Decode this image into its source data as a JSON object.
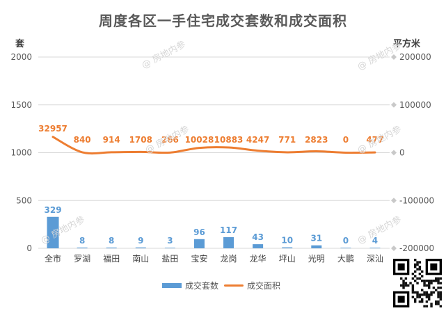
{
  "chart_data": {
    "type": "bar",
    "title": "周度各区一手住宅成交套数和成交面积",
    "left_axis_unit": "套",
    "right_axis_unit": "平方米",
    "categories": [
      "全市",
      "罗湖",
      "福田",
      "南山",
      "盐田",
      "宝安",
      "龙岗",
      "龙华",
      "坪山",
      "光明",
      "大鹏",
      "深汕"
    ],
    "series": [
      {
        "name": "成交套数",
        "type": "bar",
        "axis": "left",
        "color": "#5b9bd5",
        "values": [
          329,
          8,
          8,
          9,
          3,
          96,
          117,
          43,
          10,
          31,
          0,
          4
        ]
      },
      {
        "name": "成交面积",
        "type": "line",
        "axis": "right",
        "color": "#ed7d31",
        "values": [
          32957,
          840,
          914,
          1708,
          266,
          10028,
          10883,
          4247,
          771,
          2823,
          0,
          477
        ]
      }
    ],
    "left_ylim": [
      0,
      2000
    ],
    "left_ticks": [
      "0",
      "500",
      "1000",
      "1500",
      "2000"
    ],
    "right_ylim": [
      -200000,
      200000
    ],
    "right_ticks": [
      "-200000",
      "-100000",
      "0",
      "100000",
      "200000"
    ],
    "grid": true,
    "legend_position": "bottom"
  },
  "watermark": "@ 房地内参"
}
